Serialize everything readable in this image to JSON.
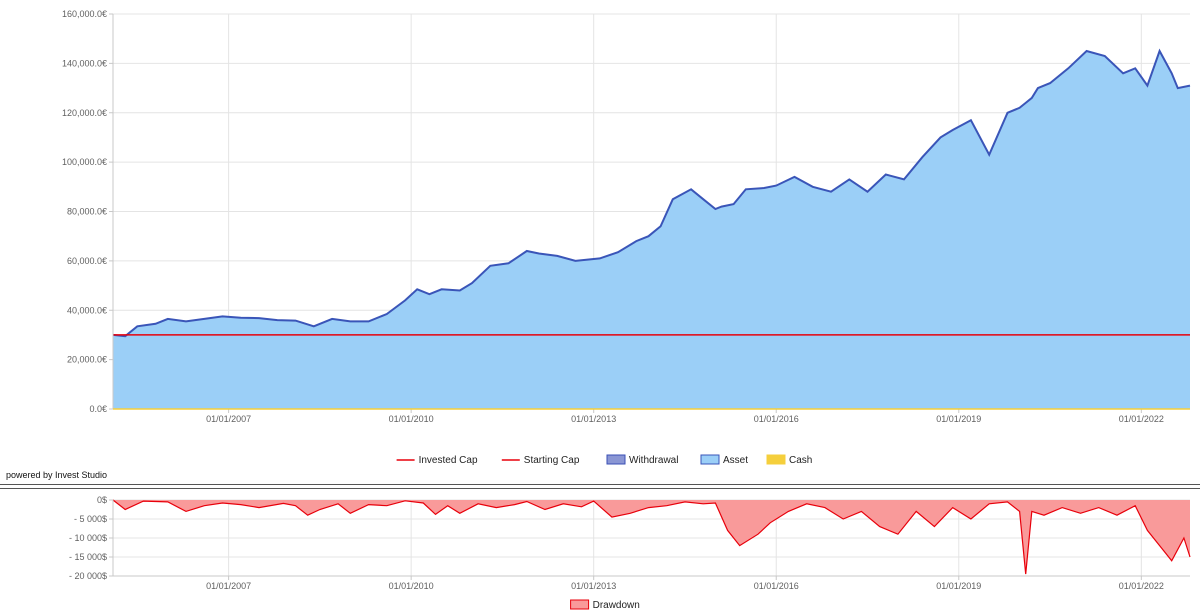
{
  "powered_by": "powered by Invest Studio",
  "colors": {
    "invested": "#e8000b",
    "starting": "#e8000b",
    "withdrawal_fill": "#8a96d4",
    "withdrawal_line": "#3a4fb5",
    "asset_fill": "#9bcff7",
    "asset_line": "#3a55b8",
    "cash_fill": "#f5cf3c",
    "drawdown_fill": "#f99a9a",
    "drawdown_line": "#e8000b",
    "grid": "#e4e4e4",
    "axis": "#c8c8c8"
  },
  "chart_data": [
    {
      "type": "area",
      "title": "",
      "x_ticks": [
        "01/01/2007",
        "01/01/2010",
        "01/01/2013",
        "01/01/2016",
        "01/01/2019",
        "01/01/2022"
      ],
      "x_tick_years": [
        2007,
        2010,
        2013,
        2016,
        2019,
        2022
      ],
      "xlim": [
        2005.1,
        2022.8
      ],
      "y_ticks": [
        "0.0€",
        "20,000.0€",
        "40,000.0€",
        "60,000.0€",
        "80,000.0€",
        "100,000.0€",
        "120,000.0€",
        "140,000.0€",
        "160,000.0€"
      ],
      "ylim": [
        0,
        160000
      ],
      "grid": true,
      "legend_position": "bottom-center",
      "legend": [
        {
          "label": "Invested Cap",
          "kind": "line",
          "color_key": "invested"
        },
        {
          "label": "Starting Cap",
          "kind": "line",
          "color_key": "starting"
        },
        {
          "label": "Withdrawal",
          "kind": "box",
          "color_key": "withdrawal_fill",
          "border_key": "withdrawal_line"
        },
        {
          "label": "Asset",
          "kind": "box",
          "color_key": "asset_fill",
          "border_key": "asset_line"
        },
        {
          "label": "Cash",
          "kind": "box",
          "color_key": "cash_fill",
          "border_key": "cash_fill"
        }
      ],
      "series": [
        {
          "name": "Asset",
          "x": [
            2005.1,
            2005.3,
            2005.5,
            2005.8,
            2006.0,
            2006.3,
            2006.6,
            2006.9,
            2007.2,
            2007.5,
            2007.8,
            2008.1,
            2008.4,
            2008.7,
            2009.0,
            2009.3,
            2009.6,
            2009.9,
            2010.1,
            2010.3,
            2010.5,
            2010.8,
            2011.0,
            2011.3,
            2011.6,
            2011.9,
            2012.1,
            2012.4,
            2012.7,
            2012.9,
            2013.1,
            2013.4,
            2013.7,
            2013.9,
            2014.1,
            2014.3,
            2014.6,
            2014.8,
            2015.0,
            2015.1,
            2015.3,
            2015.5,
            2015.8,
            2016.0,
            2016.3,
            2016.6,
            2016.9,
            2017.2,
            2017.5,
            2017.8,
            2018.1,
            2018.4,
            2018.7,
            2018.9,
            2019.2,
            2019.5,
            2019.8,
            2020.0,
            2020.1,
            2020.2,
            2020.3,
            2020.5,
            2020.8,
            2021.1,
            2021.4,
            2021.7,
            2021.9,
            2022.1,
            2022.3,
            2022.5,
            2022.6,
            2022.8
          ],
          "values": [
            30000,
            29500,
            33500,
            34500,
            36500,
            35500,
            36500,
            37500,
            37000,
            36800,
            36000,
            35800,
            33500,
            36500,
            35500,
            35500,
            38500,
            44000,
            48500,
            46500,
            48500,
            48000,
            51000,
            58000,
            59000,
            64000,
            63000,
            62000,
            60000,
            60500,
            61000,
            63500,
            68000,
            70000,
            74000,
            85000,
            89000,
            85000,
            81000,
            82000,
            83000,
            89000,
            89500,
            90500,
            94000,
            90000,
            88000,
            93000,
            88000,
            95000,
            93000,
            102000,
            110000,
            113000,
            117000,
            103000,
            120000,
            122000,
            124000,
            126000,
            130000,
            132000,
            138000,
            145000,
            143000,
            136000,
            138000,
            131000,
            145000,
            136000,
            130000,
            131000
          ]
        },
        {
          "name": "Invested Cap",
          "x": [
            2005.1,
            2022.8
          ],
          "values": [
            30000,
            30000
          ]
        }
      ]
    },
    {
      "type": "area",
      "title": "",
      "x_ticks": [
        "01/01/2007",
        "01/01/2010",
        "01/01/2013",
        "01/01/2016",
        "01/01/2019",
        "01/01/2022"
      ],
      "x_tick_years": [
        2007,
        2010,
        2013,
        2016,
        2019,
        2022
      ],
      "xlim": [
        2005.1,
        2022.8
      ],
      "y_ticks": [
        "- 20 000$",
        "- 15 000$",
        "- 10 000$",
        "- 5 000$",
        "0$"
      ],
      "ylim": [
        -20000,
        0
      ],
      "grid": true,
      "legend_position": "bottom-center",
      "legend": [
        {
          "label": "Drawdown",
          "kind": "box",
          "color_key": "drawdown_fill",
          "border_key": "drawdown_line"
        }
      ],
      "series": [
        {
          "name": "Drawdown",
          "x": [
            2005.1,
            2005.3,
            2005.6,
            2006.0,
            2006.3,
            2006.6,
            2006.9,
            2007.2,
            2007.5,
            2007.9,
            2008.1,
            2008.3,
            2008.5,
            2008.8,
            2009.0,
            2009.3,
            2009.6,
            2009.9,
            2010.2,
            2010.4,
            2010.6,
            2010.8,
            2011.1,
            2011.4,
            2011.7,
            2011.9,
            2012.2,
            2012.5,
            2012.8,
            2013.0,
            2013.3,
            2013.6,
            2013.9,
            2014.2,
            2014.5,
            2014.8,
            2015.0,
            2015.2,
            2015.4,
            2015.7,
            2015.9,
            2016.2,
            2016.5,
            2016.8,
            2017.1,
            2017.4,
            2017.7,
            2018.0,
            2018.3,
            2018.6,
            2018.9,
            2019.2,
            2019.5,
            2019.8,
            2020.0,
            2020.1,
            2020.2,
            2020.4,
            2020.7,
            2021.0,
            2021.3,
            2021.6,
            2021.9,
            2022.1,
            2022.3,
            2022.5,
            2022.7,
            2022.8
          ],
          "values": [
            0,
            -2500,
            -300,
            -500,
            -3000,
            -1500,
            -800,
            -1200,
            -2000,
            -900,
            -1500,
            -4000,
            -2500,
            -1000,
            -3500,
            -1200,
            -1500,
            -200,
            -800,
            -3800,
            -1500,
            -3500,
            -1000,
            -2000,
            -1200,
            -400,
            -2500,
            -1000,
            -1800,
            -300,
            -4500,
            -3500,
            -2000,
            -1500,
            -500,
            -1000,
            -800,
            -8000,
            -12000,
            -9000,
            -6000,
            -3000,
            -1000,
            -2000,
            -5000,
            -3000,
            -7000,
            -9000,
            -3000,
            -7000,
            -2000,
            -5000,
            -1000,
            -500,
            -3000,
            -19500,
            -3000,
            -4000,
            -2000,
            -3500,
            -2000,
            -4000,
            -1500,
            -8000,
            -12000,
            -16000,
            -10000,
            -15000
          ]
        }
      ]
    }
  ]
}
